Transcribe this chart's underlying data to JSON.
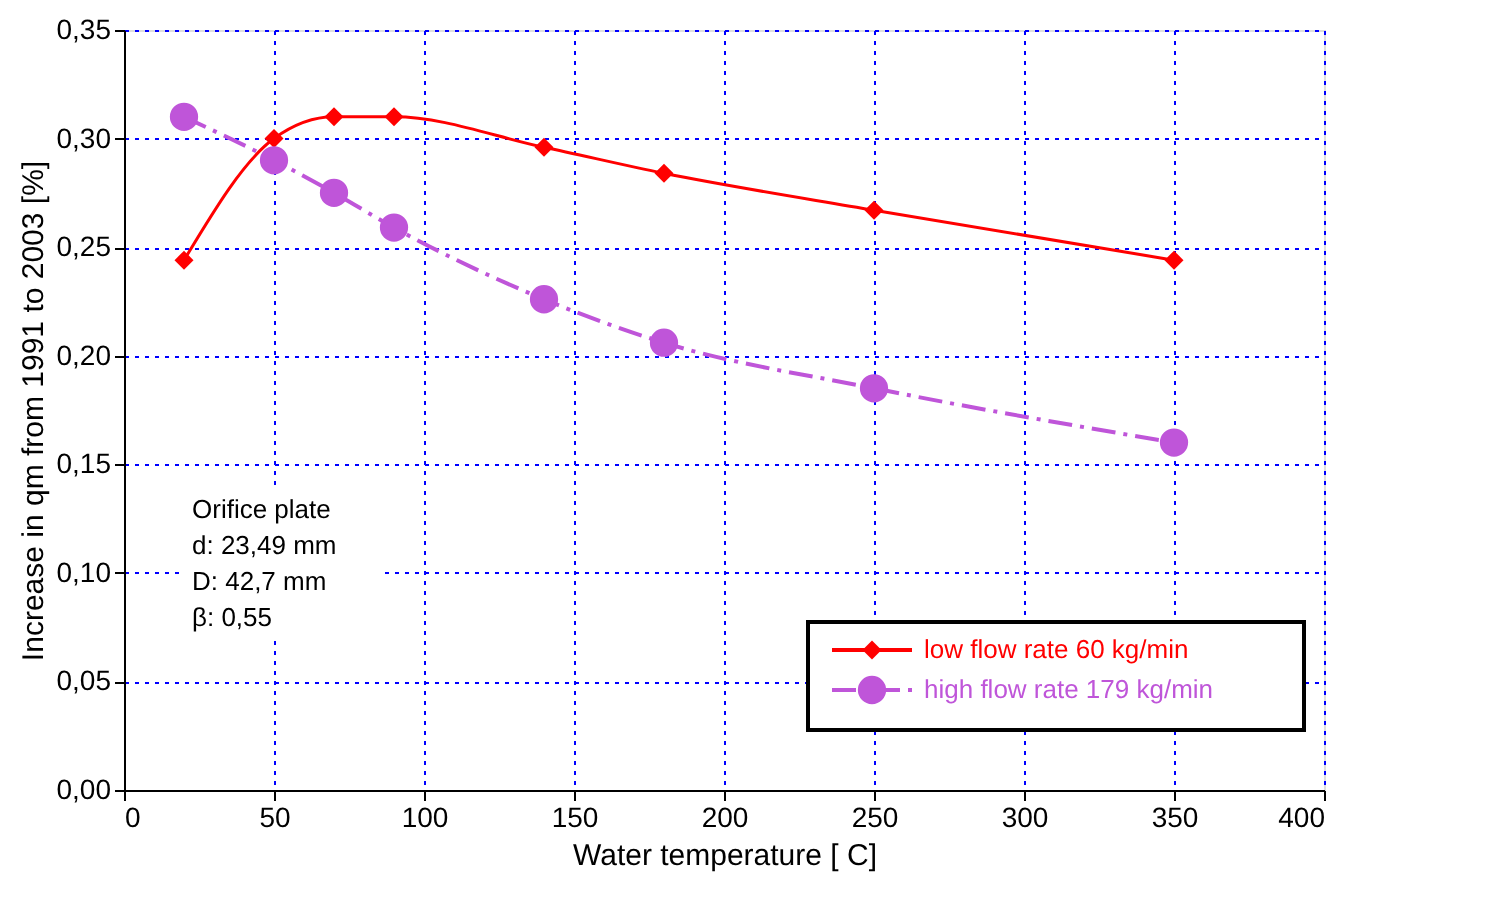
{
  "chart_data": {
    "type": "line",
    "xlabel": "Water temperature [ C]",
    "ylabel": "Increase in qm from 1991 to 2003 [%]",
    "x": [
      20,
      50,
      70,
      90,
      140,
      180,
      250,
      350
    ],
    "series": [
      {
        "name": "low flow rate 60 kg/min",
        "color": "#ff0000",
        "marker": "diamond",
        "line_style": "solid",
        "values": [
          0.244,
          0.3,
          0.31,
          0.31,
          0.296,
          0.284,
          0.267,
          0.244
        ]
      },
      {
        "name": "high flow rate 179 kg/min",
        "color": "#bf55d9",
        "marker": "circle",
        "line_style": "dashed",
        "values": [
          0.31,
          0.29,
          0.275,
          0.259,
          0.226,
          0.206,
          0.185,
          0.16
        ]
      }
    ],
    "xlim": [
      0,
      400
    ],
    "xticks": [
      0,
      50,
      100,
      150,
      200,
      250,
      300,
      350,
      400
    ],
    "ylim": [
      0,
      0.35
    ],
    "yticks": [
      {
        "value": 0,
        "label": "0,00"
      },
      {
        "value": 0.05,
        "label": "0,05"
      },
      {
        "value": 0.1,
        "label": "0,10"
      },
      {
        "value": 0.15,
        "label": "0,15"
      },
      {
        "value": 0.2,
        "label": "0,20"
      },
      {
        "value": 0.25,
        "label": "0,25"
      },
      {
        "value": 0.3,
        "label": "0,30"
      },
      {
        "value": 0.35,
        "label": "0,35"
      }
    ],
    "grid": true,
    "legend": "bottom right",
    "annotations": [
      {
        "text": "Orifice plate\nd: 23,49 mm\nD: 42,7 mm\nβ: 0,55"
      }
    ]
  }
}
